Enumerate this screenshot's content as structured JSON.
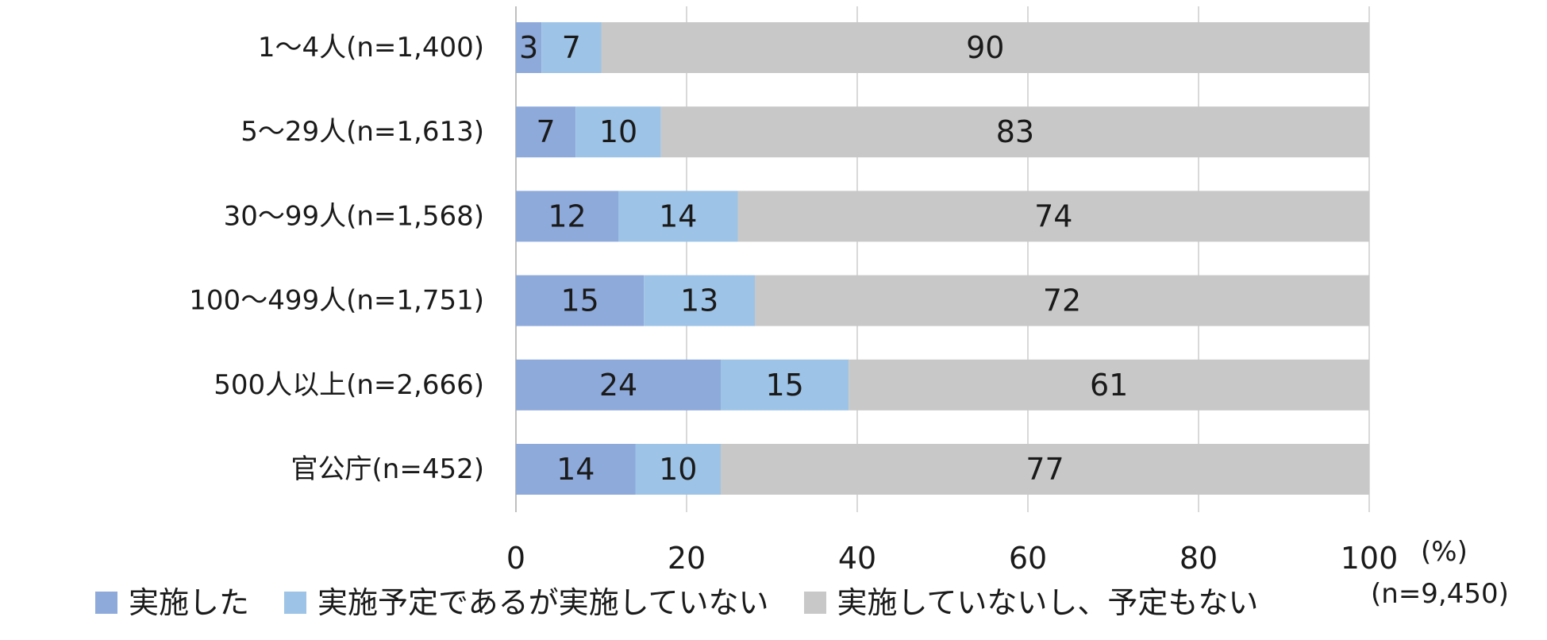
{
  "chart_data": {
    "type": "bar",
    "orientation": "horizontal",
    "stacked": true,
    "categories": [
      "1〜4人(n=1,400)",
      "5〜29人(n=1,613)",
      "30〜99人(n=1,568)",
      "100〜499人(n=1,751)",
      "500人以上(n=2,666)",
      "官公庁(n=452)"
    ],
    "series": [
      {
        "name": "実施した",
        "values": [
          3,
          7,
          12,
          15,
          24,
          14
        ],
        "color": "#8eaadb"
      },
      {
        "name": "実施予定であるが実施していない",
        "values": [
          7,
          10,
          14,
          13,
          15,
          10
        ],
        "color": "#9dc3e6"
      },
      {
        "name": "実施していないし、予定もない",
        "values": [
          90,
          83,
          74,
          72,
          61,
          77
        ],
        "color": "#c8c8c8"
      }
    ],
    "xlim": [
      0,
      100
    ],
    "xticks": [
      "0",
      "20",
      "40",
      "60",
      "80",
      "100"
    ],
    "unit": "(%)",
    "note": "(n=9,450)",
    "grid": true,
    "legend_position": "bottom"
  }
}
